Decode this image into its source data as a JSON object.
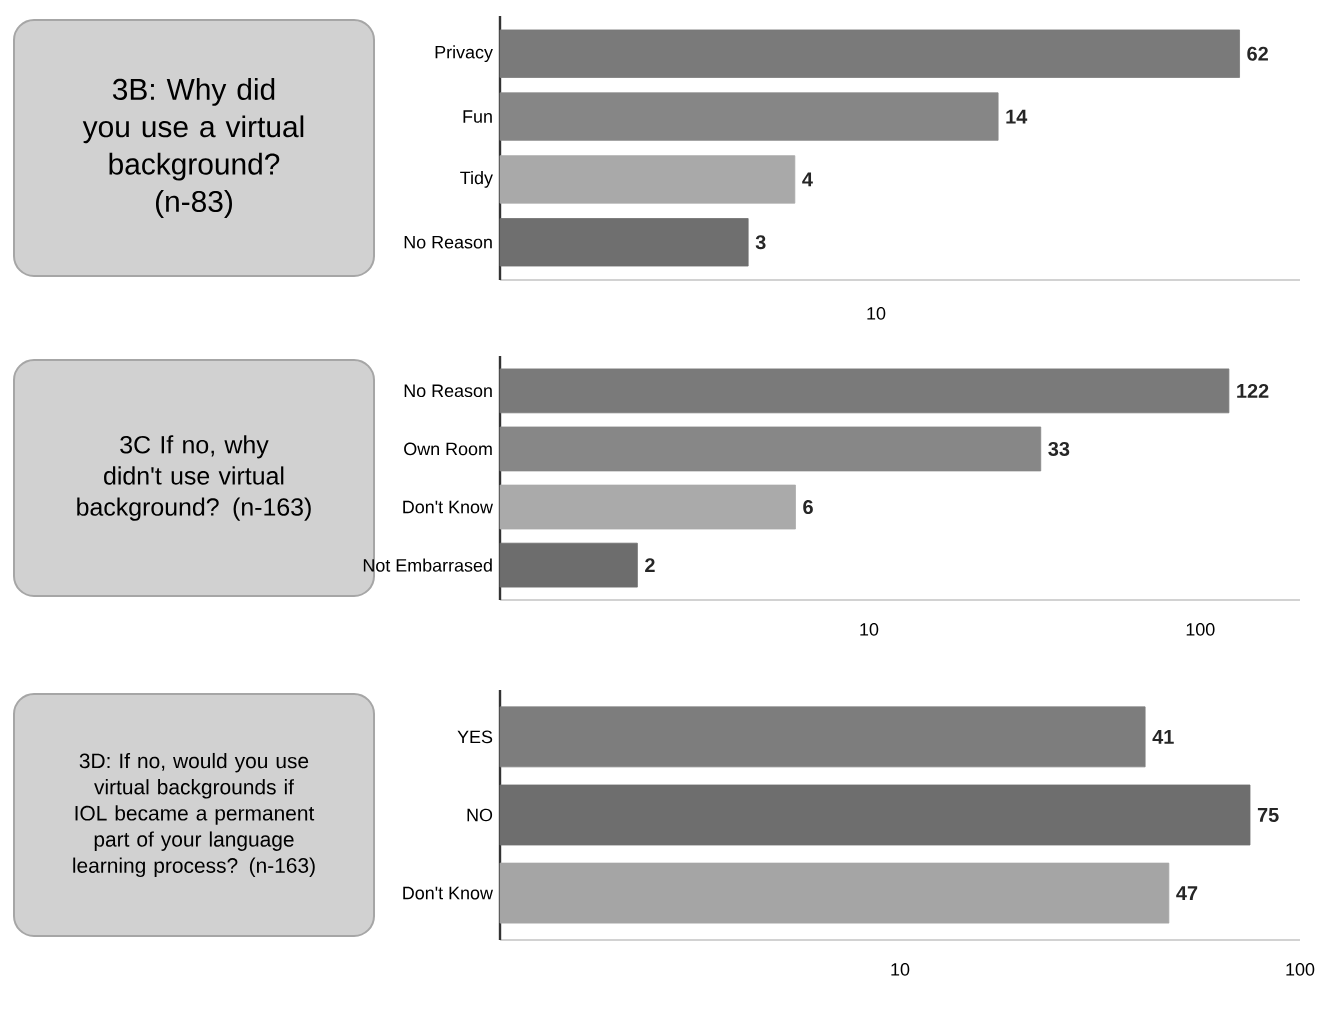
{
  "chart_data": [
    {
      "type": "bar",
      "orientation": "horizontal",
      "title": "3B: Why did you use a virtual background? (n-83)",
      "categories": [
        "Privacy",
        "Fun",
        "Tidy",
        "No Reason"
      ],
      "values": [
        62,
        14,
        4,
        3
      ],
      "colors": [
        "#7a7a7a",
        "#868686",
        "#a9a9a9",
        "#6f6f6f"
      ],
      "log": "x",
      "xlim": [
        0.65,
        90
      ],
      "data_labels": true,
      "annotations": [
        "10"
      ]
    },
    {
      "type": "bar",
      "orientation": "horizontal",
      "title": "3C If no, why didn't use virtual background? (n-163)",
      "categories": [
        "No Reason",
        "Own Room",
        "Don't Know",
        "Not Embarrased"
      ],
      "values": [
        122,
        33,
        6,
        2
      ],
      "colors": [
        "#7a7a7a",
        "#878787",
        "#aaaaaa",
        "#6d6d6d"
      ],
      "log": "x",
      "xlim": [
        0.77,
        200
      ],
      "xticks": [
        10,
        100
      ],
      "data_labels": true
    },
    {
      "type": "bar",
      "orientation": "horizontal",
      "title": "3D: If no, would you use virtual backgrounds if IOL became a permanent part of your language learning process? (n-163)",
      "categories": [
        "YES",
        "NO",
        "Don't Know"
      ],
      "values": [
        41,
        75,
        47
      ],
      "colors": [
        "#7d7d7d",
        "#6e6e6e",
        "#a5a5a5"
      ],
      "log": "x",
      "xlim": [
        1,
        100
      ],
      "xticks": [
        10,
        100
      ],
      "data_labels": true
    }
  ]
}
